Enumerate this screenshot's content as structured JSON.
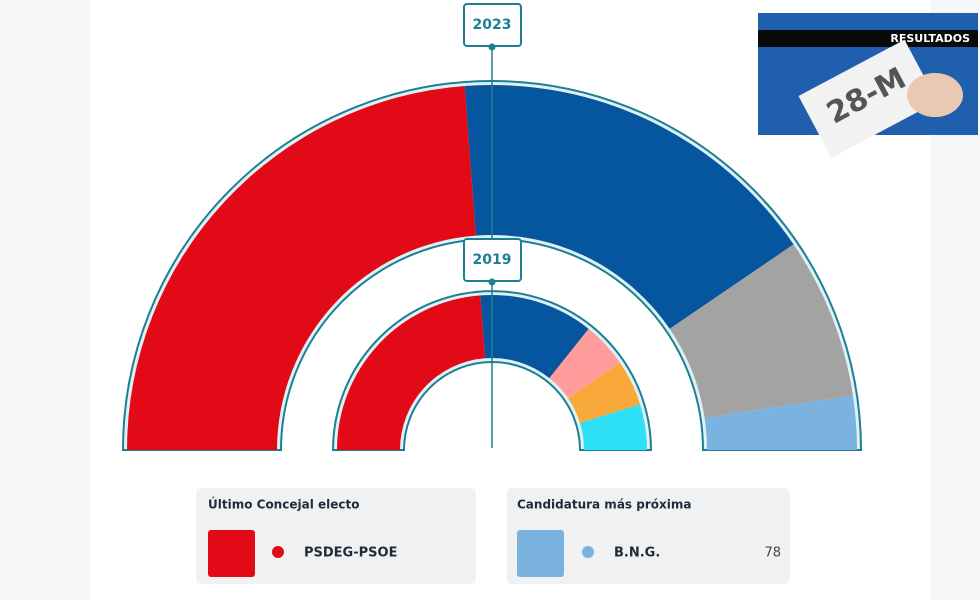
{
  "hemicycles": [
    {
      "label": "2023",
      "values": [
        10,
        7,
        3,
        1
      ],
      "colors": [
        "#e20a17",
        "#06559f",
        "#a3a3a3",
        "#7ab3e0"
      ]
    },
    {
      "label": "2019",
      "values": [
        10,
        5,
        2,
        2,
        2
      ],
      "colors": [
        "#e20a17",
        "#06559f",
        "#ff9d9d",
        "#f9a93a",
        "#2de0f5"
      ]
    }
  ],
  "banner": {
    "badge": "RESULTADOS",
    "ballot": "28-M"
  },
  "last_elected": {
    "title": "Último Concejal electo",
    "party": "PSDEG-PSOE",
    "color": "#e20a17"
  },
  "closest": {
    "title": "Candidatura más próxima",
    "party": "B.N.G.",
    "votes": 78,
    "color": "#7ab3e0"
  }
}
